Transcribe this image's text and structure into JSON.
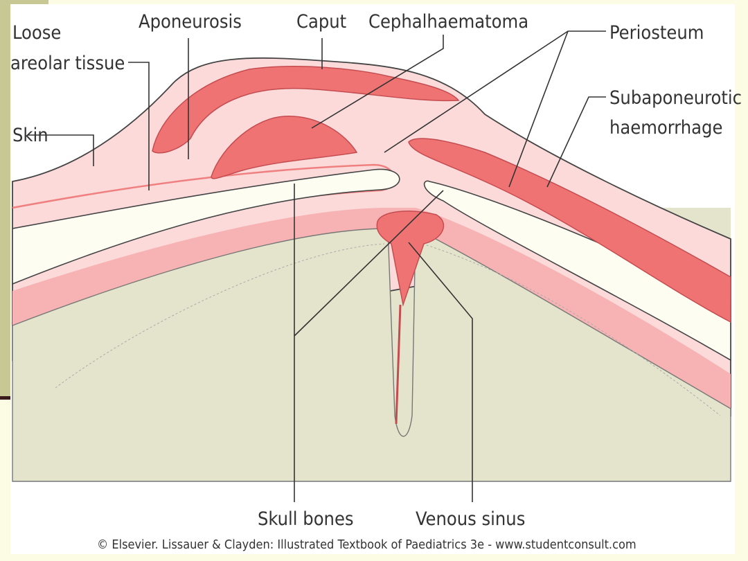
{
  "labels": {
    "loose": "Loose",
    "areolar_tissue": "areolar tissue",
    "aponeurosis": "Aponeurosis",
    "caput": "Caput",
    "cephalhaematoma": "Cephalhaematoma",
    "periosteum": "Periosteum",
    "subaponeurotic": "Subaponeurotic",
    "haemorrhage": "haemorrhage",
    "skin": "Skin",
    "skull_bones": "Skull bones",
    "venous_sinus": "Venous sinus"
  },
  "credit": "© Elsevier. Lissauer & Clayden: Illustrated Textbook of Paediatrics 3e - www.studentconsult.com"
}
